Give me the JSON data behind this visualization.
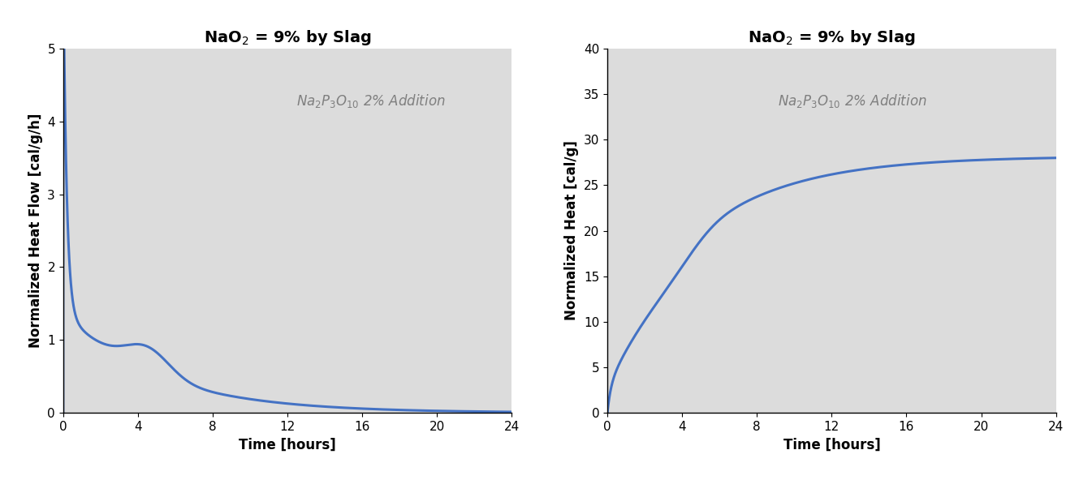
{
  "title1": "NaO$_2$ = 9% by Slag",
  "title2": "NaO$_2$ = 9% by Slag",
  "annotation": "$Na_2P_3O_{10}$ 2% Addition",
  "xlabel": "Time [hours]",
  "ylabel1": "Normalized Heat Flow [cal/g/h]",
  "ylabel2": "Normalized Heat [cal/g]",
  "xlim": [
    0,
    24
  ],
  "ylim1": [
    0.0,
    5.0
  ],
  "ylim2": [
    0,
    40
  ],
  "xticks": [
    0,
    4,
    8,
    12,
    16,
    20,
    24
  ],
  "yticks1": [
    0.0,
    1.0,
    2.0,
    3.0,
    4.0,
    5.0
  ],
  "yticks2": [
    0,
    5,
    10,
    15,
    20,
    25,
    30,
    35,
    40
  ],
  "line_color": "#4472C4",
  "bg_color": "#DCDCDC",
  "fig_color": "#FFFFFF",
  "title_fontsize": 14,
  "label_fontsize": 12,
  "tick_fontsize": 11,
  "annotation_fontsize": 12,
  "annotation_color": "#7F7F7F"
}
